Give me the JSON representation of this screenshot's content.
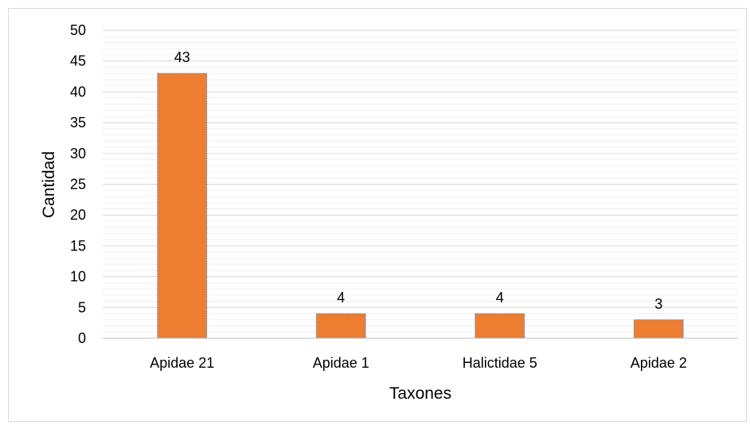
{
  "chart_data": {
    "type": "bar",
    "categories": [
      "Apidae 21",
      "Apidae 1",
      "Halictidae 5",
      "Apidae 2"
    ],
    "values": [
      43,
      4,
      4,
      3
    ],
    "title": "",
    "xlabel": "Taxones",
    "ylabel": "Cantidad",
    "ylim": [
      0,
      50
    ],
    "yticks": [
      0,
      5,
      10,
      15,
      20,
      25,
      30,
      35,
      40,
      45,
      50
    ],
    "data_labels": [
      "43",
      "4",
      "4",
      "3"
    ],
    "grid": true,
    "legend": "none",
    "colors": {
      "bar": "#ED7D31",
      "bar_outline": "#5B9BD5",
      "gridline": "#d9d9d9",
      "minor_gridline": "#efefef"
    }
  }
}
